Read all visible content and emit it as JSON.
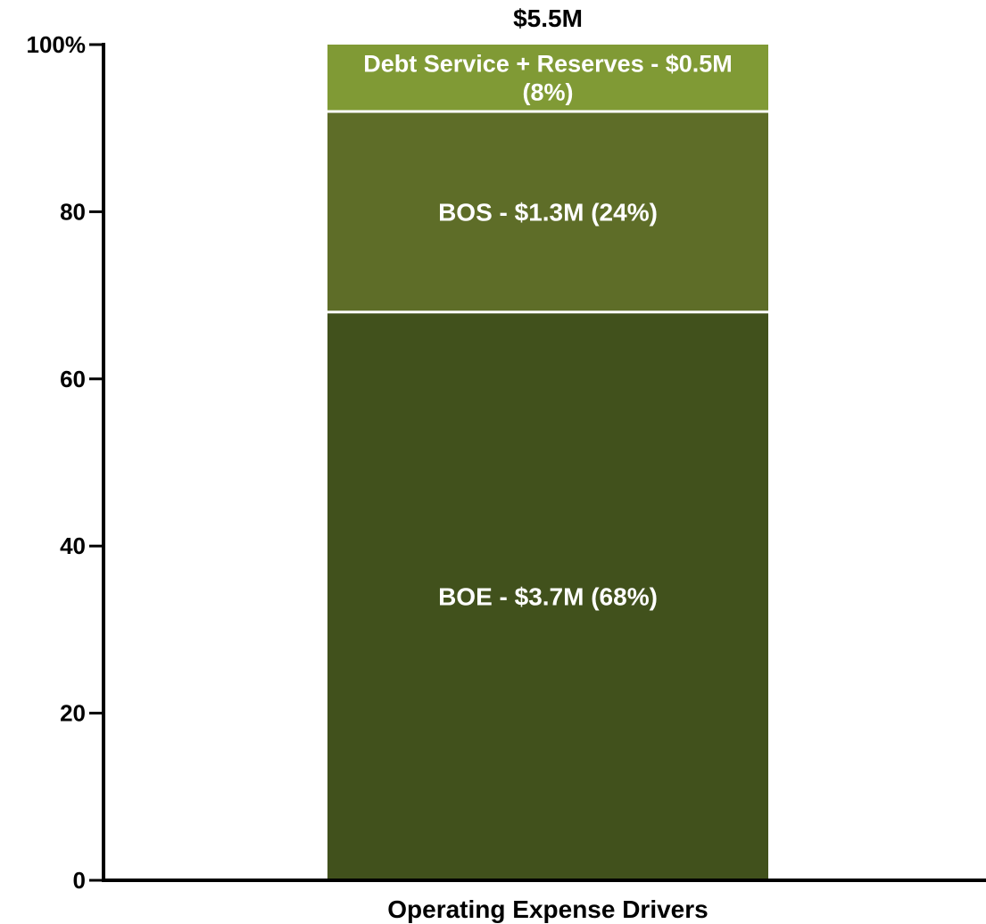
{
  "chart_data": {
    "type": "bar",
    "stacked": true,
    "categories": [
      "Operating Expense Drivers"
    ],
    "total_label": "$5.5M",
    "ylim": [
      0,
      100
    ],
    "yticks": [
      0,
      20,
      40,
      60,
      80,
      100
    ],
    "ytick_labels": [
      "0",
      "20",
      "40",
      "60",
      "80",
      "100%"
    ],
    "series": [
      {
        "label": "BOE - $3.7M (68%)",
        "values": [
          68
        ],
        "color": "#41511c"
      },
      {
        "label": "BOS - $1.3M (24%)",
        "values": [
          24
        ],
        "color": "#5e6d28"
      },
      {
        "label_lines": [
          "Debt Service + Reserves - $0.5M",
          "(8%)"
        ],
        "values": [
          8
        ],
        "color": "#809a35"
      }
    ],
    "grid": false,
    "legend": "none"
  }
}
